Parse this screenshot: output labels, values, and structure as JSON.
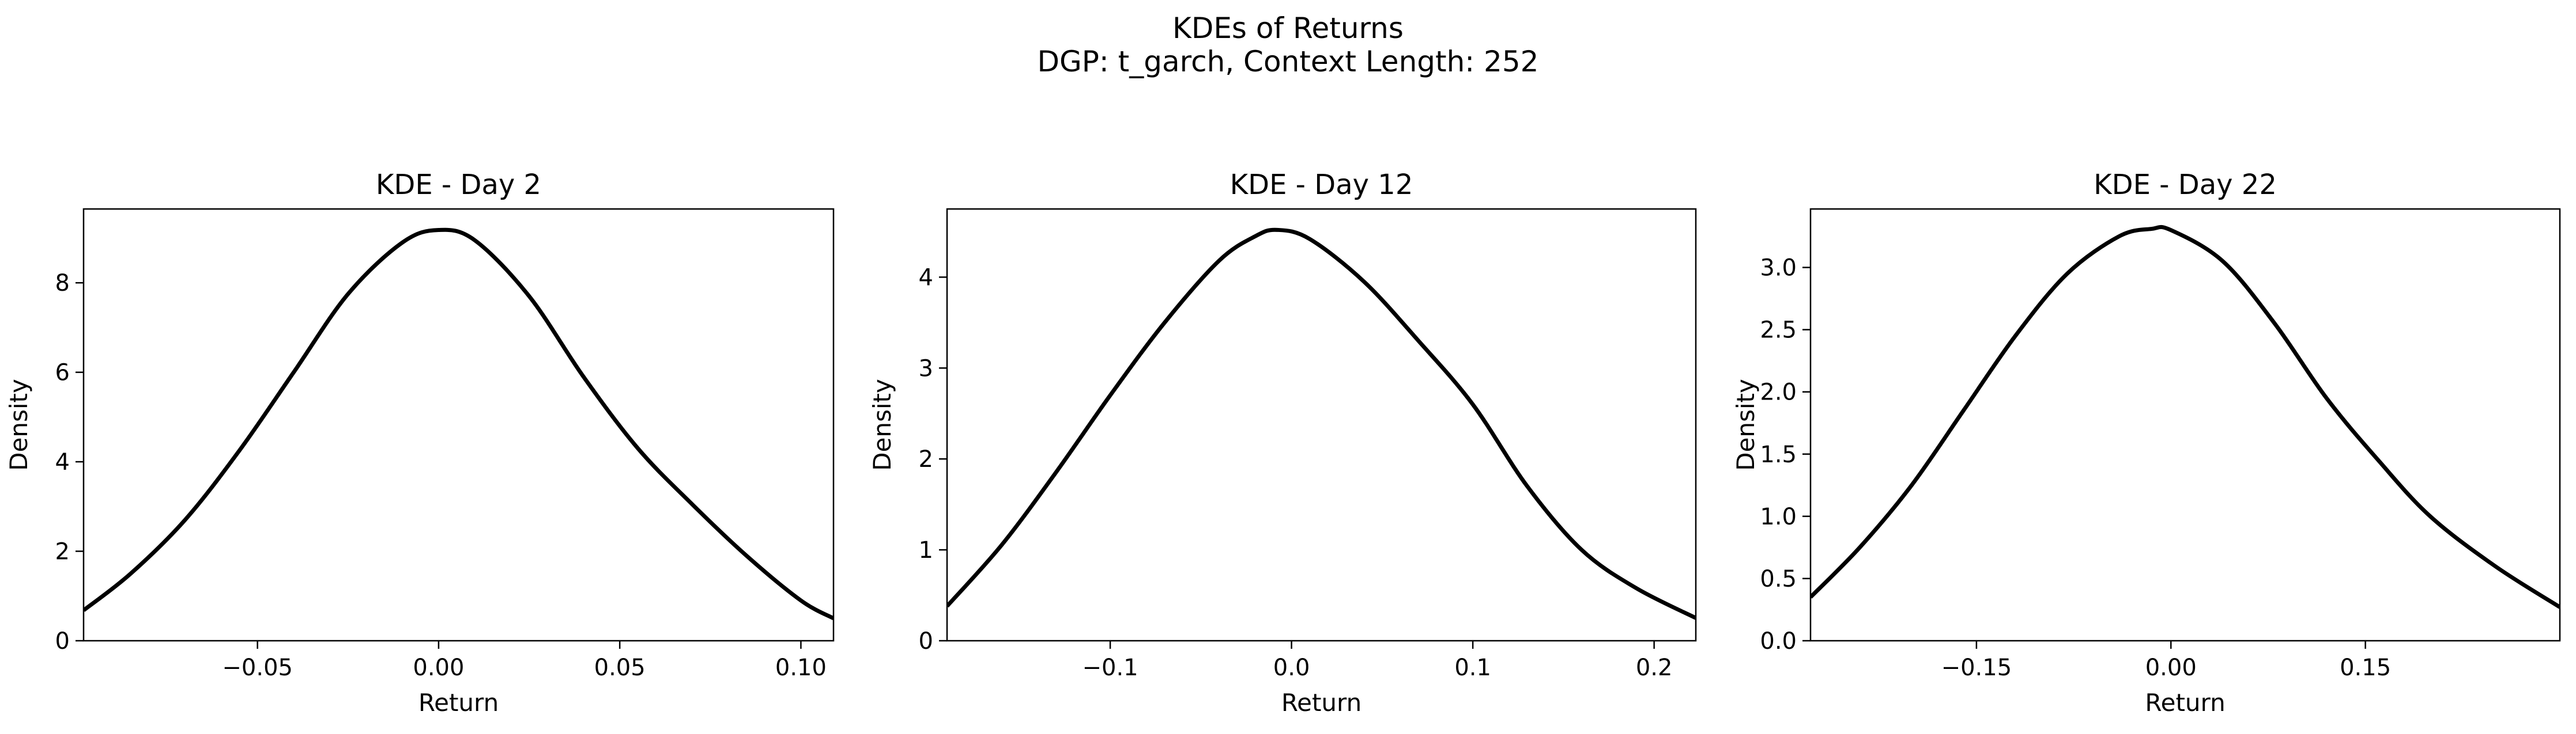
{
  "figure": {
    "title_line1": "KDEs of Returns",
    "title_line2": "DGP: t_garch, Context Length: 252"
  },
  "chart_data": [
    {
      "type": "line",
      "title": "KDE - Day 2",
      "xlabel": "Return",
      "ylabel": "Density",
      "xlim": [
        -0.098,
        0.109
      ],
      "ylim": [
        0,
        9.65
      ],
      "xticks": [
        -0.05,
        0.0,
        0.05,
        0.1
      ],
      "xtick_labels": [
        "−0.05",
        "0.00",
        "0.05",
        "0.10"
      ],
      "yticks": [
        0,
        2,
        4,
        6,
        8
      ],
      "ytick_labels": [
        "0",
        "2",
        "4",
        "6",
        "8"
      ],
      "grid": false,
      "series": [
        {
          "color": "#000000",
          "x": [
            -0.098,
            -0.085,
            -0.07,
            -0.055,
            -0.04,
            -0.025,
            -0.01,
            0.0,
            0.01,
            0.025,
            0.04,
            0.055,
            0.07,
            0.085,
            0.1,
            0.109
          ],
          "y": [
            0.68,
            1.5,
            2.7,
            4.25,
            6.0,
            7.75,
            8.9,
            9.18,
            8.95,
            7.7,
            5.9,
            4.3,
            3.05,
            1.9,
            0.9,
            0.5
          ]
        }
      ]
    },
    {
      "type": "line",
      "title": "KDE - Day 12",
      "xlabel": "Return",
      "ylabel": "Density",
      "xlim": [
        -0.19,
        0.223
      ],
      "ylim": [
        0,
        4.75
      ],
      "xticks": [
        -0.1,
        0.0,
        0.1,
        0.2
      ],
      "xtick_labels": [
        "−0.1",
        "0.0",
        "0.1",
        "0.2"
      ],
      "yticks": [
        0,
        1,
        2,
        3,
        4
      ],
      "ytick_labels": [
        "0",
        "1",
        "2",
        "3",
        "4"
      ],
      "grid": false,
      "series": [
        {
          "color": "#000000",
          "x": [
            -0.19,
            -0.16,
            -0.13,
            -0.1,
            -0.07,
            -0.04,
            -0.02,
            -0.008,
            0.01,
            0.04,
            0.07,
            0.1,
            0.13,
            0.16,
            0.19,
            0.223
          ],
          "y": [
            0.38,
            1.05,
            1.85,
            2.7,
            3.5,
            4.18,
            4.45,
            4.52,
            4.42,
            3.95,
            3.3,
            2.6,
            1.7,
            1.0,
            0.58,
            0.25
          ]
        }
      ]
    },
    {
      "type": "line",
      "title": "KDE - Day 22",
      "xlabel": "Return",
      "ylabel": "Density",
      "xlim": [
        -0.278,
        0.3
      ],
      "ylim": [
        0,
        3.47
      ],
      "xticks": [
        -0.15,
        0.0,
        0.15
      ],
      "xtick_labels": [
        "−0.15",
        "0.00",
        "0.15"
      ],
      "yticks": [
        0,
        0.5,
        1.0,
        1.5,
        2.0,
        2.5,
        3.0
      ],
      "ytick_labels": [
        "0.0",
        "0.5",
        "1.0",
        "1.5",
        "2.0",
        "2.5",
        "3.0"
      ],
      "grid": false,
      "series": [
        {
          "color": "#000000",
          "x": [
            -0.278,
            -0.24,
            -0.2,
            -0.16,
            -0.12,
            -0.08,
            -0.04,
            -0.015,
            0.0,
            0.04,
            0.08,
            0.12,
            0.16,
            0.2,
            0.25,
            0.3
          ],
          "y": [
            0.35,
            0.75,
            1.25,
            1.85,
            2.45,
            2.95,
            3.25,
            3.31,
            3.3,
            3.05,
            2.55,
            1.95,
            1.45,
            1.0,
            0.6,
            0.27
          ]
        }
      ]
    }
  ]
}
